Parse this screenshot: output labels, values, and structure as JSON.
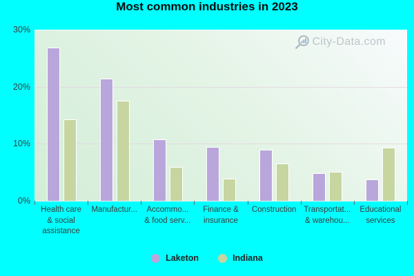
{
  "title": "Most common industries in 2023",
  "watermark": {
    "text": "City-Data.com"
  },
  "colors": {
    "background": "#00ffff",
    "laketon": "#b9a6da",
    "indiana": "#c7d5a1",
    "plot_gradient_low": "#d3edd8",
    "plot_gradient_high": "#f8fbfd",
    "gridline": "#e4d4e0",
    "axis_text": "#3c3c3c",
    "title_text": "#0b0b0b",
    "watermark_text": "#b3bcc3"
  },
  "y_axis": {
    "tick_labels": [
      "30%",
      "20%",
      "10%",
      "0%"
    ],
    "tick_values": [
      30,
      20,
      10,
      0
    ]
  },
  "chart_data": {
    "type": "bar",
    "title": "Most common industries in 2023",
    "categories": [
      "Health care & social assistance",
      "Manufacturing",
      "Accommodation & food services",
      "Finance & insurance",
      "Construction",
      "Transportation & warehousing",
      "Educational services"
    ],
    "category_label_lines": [
      [
        "Health care",
        "& social",
        "assistance"
      ],
      [
        "Manufactur..."
      ],
      [
        "Accommo...",
        "& food serv..."
      ],
      [
        "Finance &",
        "insurance"
      ],
      [
        "Construction"
      ],
      [
        "Transportat...",
        "& warehou..."
      ],
      [
        "Educational",
        "services"
      ]
    ],
    "series": [
      {
        "name": "Laketon",
        "color": "#b9a6da",
        "values": [
          26.8,
          21.4,
          10.8,
          9.4,
          8.9,
          4.8,
          3.7
        ]
      },
      {
        "name": "Indiana",
        "color": "#c7d5a1",
        "values": [
          14.3,
          17.5,
          5.9,
          3.9,
          6.5,
          5.1,
          9.3
        ]
      }
    ],
    "ylabel": "",
    "xlabel": "",
    "ylim": [
      0,
      30
    ],
    "grid": true,
    "legend_position": "bottom"
  }
}
